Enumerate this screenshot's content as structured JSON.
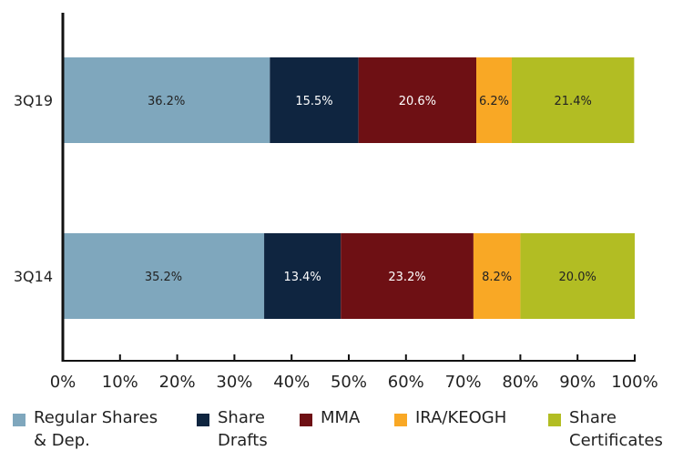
{
  "chart_data": {
    "type": "bar",
    "orientation": "horizontal",
    "stacked": true,
    "categories": [
      "3Q19",
      "3Q14"
    ],
    "series": [
      {
        "name": "Regular Shares\n& Dep.",
        "color": "#7fa7bd",
        "label_color": "#222222",
        "values": [
          36.2,
          35.2
        ],
        "labels": [
          "36.2%",
          "35.2%"
        ]
      },
      {
        "name": "Share\nDrafts",
        "color": "#0f2540",
        "label_color": "#ffffff",
        "values": [
          15.5,
          13.4
        ],
        "labels": [
          "15.5%",
          "13.4%"
        ]
      },
      {
        "name": "MMA",
        "color": "#6e1014",
        "label_color": "#ffffff",
        "values": [
          20.6,
          23.2
        ],
        "labels": [
          "20.6%",
          "23.2%"
        ]
      },
      {
        "name": "IRA/KEOGH",
        "color": "#f9a825",
        "label_color": "#222222",
        "values": [
          6.2,
          8.2
        ],
        "labels": [
          "6.2%",
          "8.2%"
        ]
      },
      {
        "name": "Share\nCertificates",
        "color": "#b2bd23",
        "label_color": "#222222",
        "values": [
          21.4,
          20.0
        ],
        "labels": [
          "21.4%",
          "20.0%"
        ]
      }
    ],
    "xlim": [
      0,
      100
    ],
    "x_ticks": [
      "0%",
      "10%",
      "20%",
      "30%",
      "40%",
      "50%",
      "60%",
      "70%",
      "80%",
      "90%",
      "100%"
    ],
    "legend_position": "bottom",
    "grid": false
  }
}
